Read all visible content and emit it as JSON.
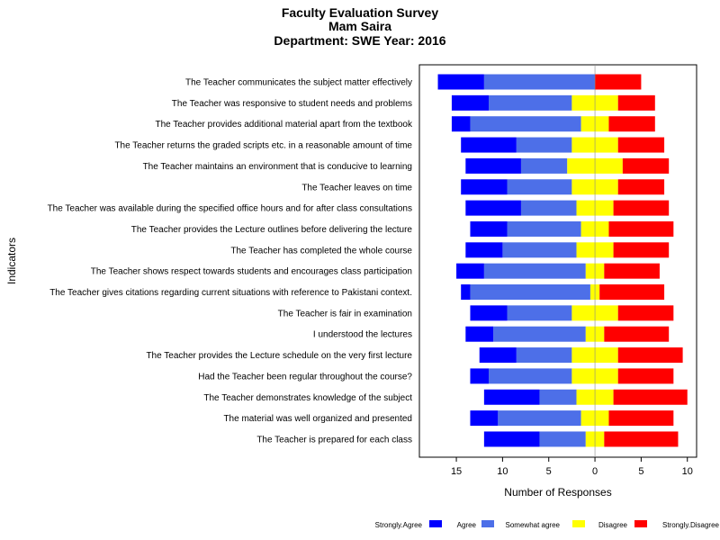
{
  "chart_data": {
    "type": "bar",
    "orientation": "horizontal-diverging",
    "title_lines": [
      "Faculty Evaluation Survey",
      "Mam Saira",
      "Department: SWE Year: 2016"
    ],
    "xlabel": "Number of Responses",
    "ylabel": "Indicators",
    "xlim": [
      -19,
      11
    ],
    "x_ticks": [
      -15,
      -10,
      -5,
      0,
      5,
      10
    ],
    "x_tick_labels": [
      "15",
      "10",
      "5",
      "0",
      "5",
      "10"
    ],
    "grid": false,
    "legend_position": "bottom",
    "categories": [
      "The Teacher communicates the subject matter effectively",
      "The Teacher was responsive to student needs and problems",
      "The Teacher provides additional material apart from the textbook",
      "The Teacher returns the graded scripts etc. in  a reasonable amount of time",
      "The Teacher maintains an environment that is conducive to learning",
      "The Teacher leaves on time",
      "The Teacher was available during the specified office hours and for after class consultations",
      "The Teacher provides the Lecture outlines before delivering the lecture",
      "The Teacher has completed the whole course",
      "The Teacher shows respect towards students and encourages class participation",
      "The Teacher gives citations regarding current situations with reference to Pakistani context.",
      "The Teacher is fair in examination",
      "I understood the lectures",
      "The Teacher provides the Lecture schedule on the very first lecture",
      "Had the Teacher been regular throughout the course?",
      "The Teacher demonstrates knowledge of the subject",
      "The material was well organized and presented",
      "The Teacher is prepared for each class"
    ],
    "series": [
      {
        "name": "Strongly.Agree",
        "color": "#0000FF",
        "side": "left",
        "values": [
          5,
          4,
          2,
          6,
          6,
          5,
          6,
          4,
          4,
          3,
          1,
          4,
          3,
          4,
          2,
          6,
          3,
          6
        ]
      },
      {
        "name": "Agree",
        "color": "#4D6FE8",
        "side": "left",
        "values": [
          12,
          9,
          12,
          6,
          5,
          7,
          6,
          8,
          8,
          11,
          13,
          7,
          10,
          6,
          9,
          4,
          9,
          5
        ]
      },
      {
        "name": "Somewhat agree",
        "color": "#FFFF00",
        "side": "center",
        "values": [
          0,
          5,
          3,
          5,
          6,
          5,
          4,
          3,
          4,
          2,
          1,
          5,
          2,
          5,
          5,
          4,
          3,
          2
        ]
      },
      {
        "name": "Disagree",
        "color": "#FF0000",
        "side": "right",
        "values": [
          5,
          4,
          5,
          5,
          5,
          5,
          6,
          7,
          6,
          6,
          7,
          6,
          7,
          7,
          6,
          8,
          7,
          8
        ]
      },
      {
        "name": "Strongly.Disagree",
        "color": "#E00000",
        "side": "right",
        "values": [
          0,
          0,
          0,
          0,
          0,
          0,
          0,
          0,
          0,
          0,
          0,
          0,
          0,
          0,
          0,
          0,
          0,
          0
        ]
      }
    ]
  }
}
